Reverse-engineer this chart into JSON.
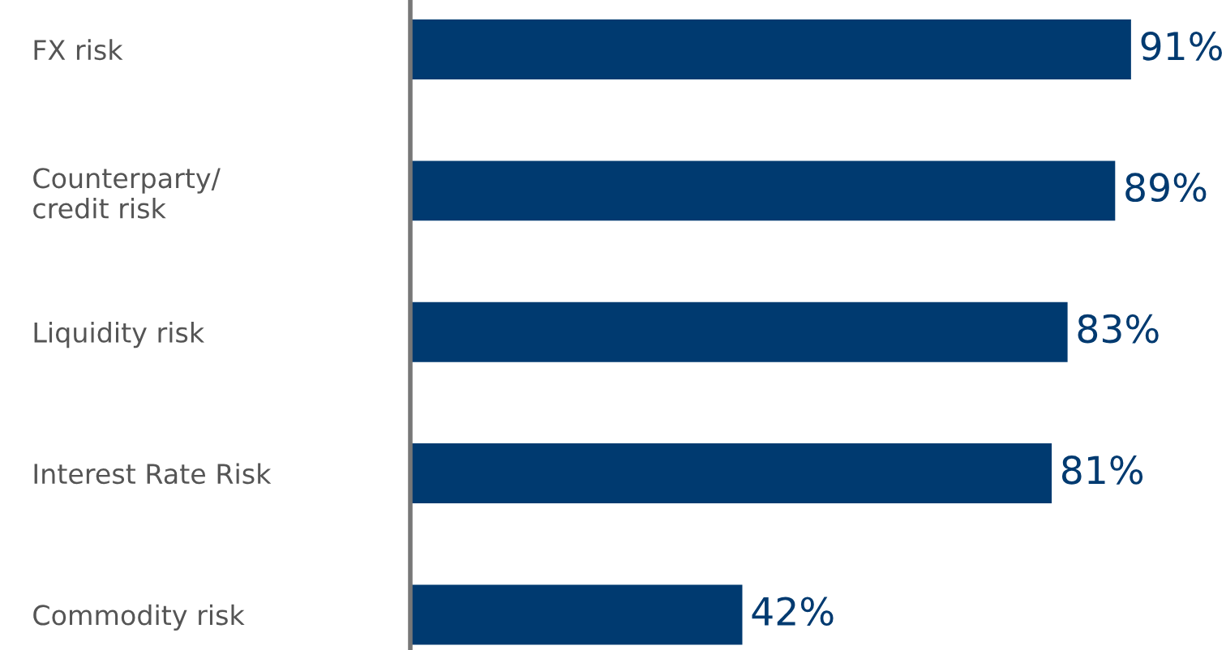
{
  "chart_data": {
    "type": "bar",
    "orientation": "horizontal",
    "categories": [
      "FX risk",
      "Counterparty/\ncredit risk",
      "Liquidity risk",
      "Interest Rate Risk",
      "Commodity risk"
    ],
    "values": [
      91,
      89,
      83,
      81,
      42
    ],
    "value_labels": [
      "91%",
      "89%",
      "83%",
      "81%",
      "42%"
    ],
    "color": "#003a70"
  }
}
